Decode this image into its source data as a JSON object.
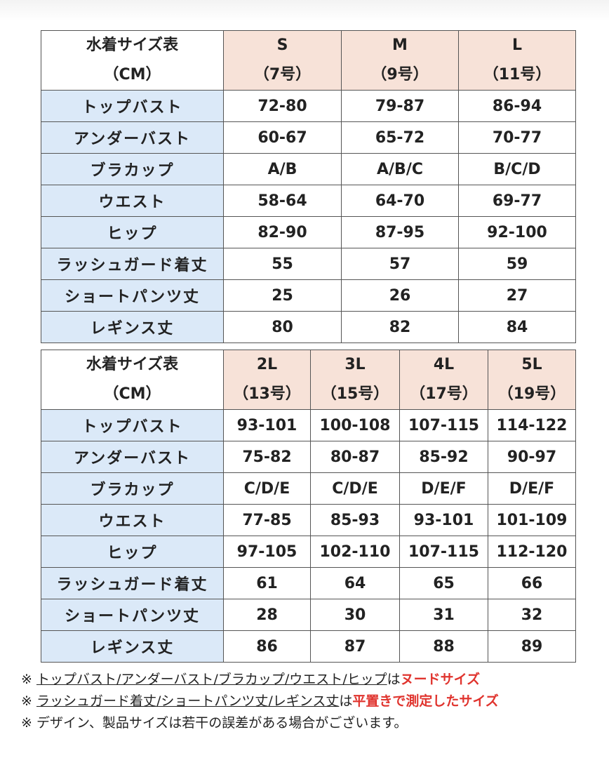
{
  "tables": [
    {
      "header": {
        "title": "水着サイズ表",
        "unit": "（CM）",
        "sizes": [
          {
            "size": "S",
            "number": "（7号）"
          },
          {
            "size": "M",
            "number": "（9号）"
          },
          {
            "size": "L",
            "number": "（11号）"
          }
        ]
      },
      "rows": [
        {
          "label": "トップバスト",
          "values": [
            "72-80",
            "79-87",
            "86-94"
          ]
        },
        {
          "label": "アンダーバスト",
          "values": [
            "60-67",
            "65-72",
            "70-77"
          ]
        },
        {
          "label": "ブラカップ",
          "values": [
            "A/B",
            "A/B/C",
            "B/C/D"
          ]
        },
        {
          "label": "ウエスト",
          "values": [
            "58-64",
            "64-70",
            "69-77"
          ]
        },
        {
          "label": "ヒップ",
          "values": [
            "82-90",
            "87-95",
            "92-100"
          ]
        },
        {
          "label": "ラッシュガード着丈",
          "values": [
            "55",
            "57",
            "59"
          ]
        },
        {
          "label": "ショートパンツ丈",
          "values": [
            "25",
            "26",
            "27"
          ]
        },
        {
          "label": "レギンス丈",
          "values": [
            "80",
            "82",
            "84"
          ]
        }
      ]
    },
    {
      "header": {
        "title": "水着サイズ表",
        "unit": "（CM）",
        "sizes": [
          {
            "size": "2L",
            "number": "（13号）"
          },
          {
            "size": "3L",
            "number": "（15号）"
          },
          {
            "size": "4L",
            "number": "（17号）"
          },
          {
            "size": "5L",
            "number": "（19号）"
          }
        ]
      },
      "rows": [
        {
          "label": "トップバスト",
          "values": [
            "93-101",
            "100-108",
            "107-115",
            "114-122"
          ]
        },
        {
          "label": "アンダーバスト",
          "values": [
            "75-82",
            "80-87",
            "85-92",
            "90-97"
          ]
        },
        {
          "label": "ブラカップ",
          "values": [
            "C/D/E",
            "C/D/E",
            "D/E/F",
            "D/E/F"
          ]
        },
        {
          "label": "ウエスト",
          "values": [
            "77-85",
            "85-93",
            "93-101",
            "101-109"
          ]
        },
        {
          "label": "ヒップ",
          "values": [
            "97-105",
            "102-110",
            "107-115",
            "112-120"
          ]
        },
        {
          "label": "ラッシュガード着丈",
          "values": [
            "61",
            "64",
            "65",
            "66"
          ]
        },
        {
          "label": "ショートパンツ丈",
          "values": [
            "28",
            "30",
            "31",
            "32"
          ]
        },
        {
          "label": "レギンス丈",
          "values": [
            "86",
            "87",
            "88",
            "89"
          ]
        }
      ]
    }
  ],
  "notes": [
    {
      "mark": "※",
      "underlined": "トップバスト/アンダーバスト/ブラカップ/ウエスト/ヒップ",
      "plain": "は",
      "emphasis": "ヌードサイズ"
    },
    {
      "mark": "※",
      "underlined": "ラッシュガード着丈/ショートパンツ丈/レギンス丈",
      "plain": "は",
      "emphasis": "平置きで測定したサイズ"
    },
    {
      "mark": "※",
      "plain": "デザイン、製品サイズは若干の誤差がある場合がございます。"
    }
  ]
}
